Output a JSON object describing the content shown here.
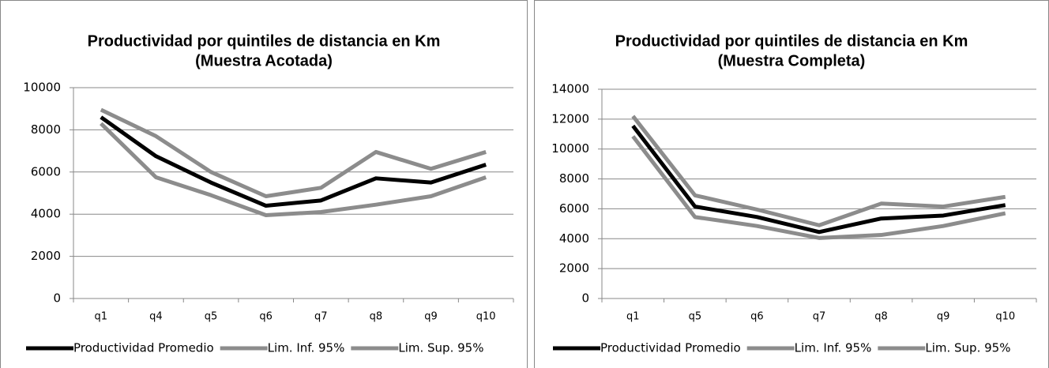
{
  "chart_data": [
    {
      "type": "line",
      "title": "Productividad por quintiles de distancia en Km",
      "subtitle": "(Muestra Acotada)",
      "categories": [
        "q1",
        "q4",
        "q5",
        "q6",
        "q7",
        "q8",
        "q9",
        "q10"
      ],
      "series": [
        {
          "name": "Productividad Promedio",
          "color": "#000000",
          "values": [
            8600,
            6750,
            5500,
            4400,
            4650,
            5700,
            5500,
            6350
          ]
        },
        {
          "name": "Lim. Inf. 95%",
          "color": "#8c8c8c",
          "values": [
            8300,
            5750,
            4900,
            3950,
            4100,
            4450,
            4850,
            5750
          ]
        },
        {
          "name": "Lim. Sup. 95%",
          "color": "#8c8c8c",
          "values": [
            8950,
            7700,
            6000,
            4850,
            5250,
            6950,
            6150,
            6950
          ]
        }
      ],
      "ylim": [
        0,
        10000
      ],
      "yticks": [
        0,
        2000,
        4000,
        6000,
        8000,
        10000
      ],
      "grid": true,
      "legend": "bottom"
    },
    {
      "type": "line",
      "title": "Productividad por quintiles de distancia en Km",
      "subtitle": "(Muestra Completa)",
      "categories": [
        "q1",
        "q5",
        "q6",
        "q7",
        "q8",
        "q9",
        "q10"
      ],
      "series": [
        {
          "name": "Productividad Promedio",
          "color": "#000000",
          "values": [
            11550,
            6150,
            5450,
            4450,
            5350,
            5550,
            6250
          ]
        },
        {
          "name": "Lim. Inf. 95%",
          "color": "#8c8c8c",
          "values": [
            10850,
            5450,
            4850,
            4050,
            4250,
            4850,
            5700
          ]
        },
        {
          "name": "Lim. Sup. 95%",
          "color": "#8c8c8c",
          "values": [
            12200,
            6900,
            5950,
            4900,
            6350,
            6150,
            6800
          ]
        }
      ],
      "ylim": [
        0,
        14000
      ],
      "yticks": [
        0,
        2000,
        4000,
        6000,
        8000,
        10000,
        12000,
        14000
      ],
      "grid": true,
      "legend": "bottom"
    }
  ]
}
